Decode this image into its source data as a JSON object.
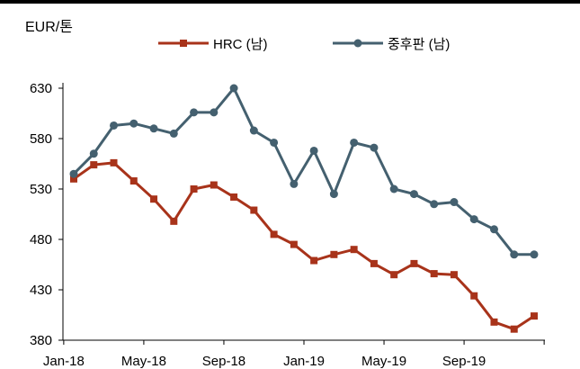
{
  "unit_label": "EUR/톤",
  "colors": {
    "hrc": "#a8331a",
    "plate": "#44606f",
    "axis": "#000000"
  },
  "chart_data": {
    "type": "line",
    "title": "",
    "xlabel": "",
    "ylabel": "EUR/톤",
    "ylim": [
      380,
      630
    ],
    "yticks": [
      380,
      430,
      480,
      530,
      580,
      630
    ],
    "x": [
      "2018-01",
      "2018-02",
      "2018-03",
      "2018-04",
      "2018-05",
      "2018-06",
      "2018-07",
      "2018-08",
      "2018-09",
      "2018-10",
      "2018-11",
      "2018-12",
      "2019-01",
      "2019-02",
      "2019-03",
      "2019-04",
      "2019-05",
      "2019-06",
      "2019-07",
      "2019-08",
      "2019-09",
      "2019-10",
      "2019-11",
      "2019-12"
    ],
    "xtick_labels": [
      {
        "index": 0,
        "label": "Jan-18"
      },
      {
        "index": 4,
        "label": "May-18"
      },
      {
        "index": 8,
        "label": "Sep-18"
      },
      {
        "index": 12,
        "label": "Jan-19"
      },
      {
        "index": 16,
        "label": "May-19"
      },
      {
        "index": 20,
        "label": "Sep-19"
      }
    ],
    "legend_position": "top",
    "grid": false,
    "series": [
      {
        "key": "hrc",
        "name": "HRC (남)",
        "marker": "square",
        "values": [
          540,
          554,
          556,
          538,
          520,
          498,
          530,
          534,
          522,
          509,
          485,
          475,
          459,
          465,
          470,
          456,
          445,
          456,
          446,
          445,
          424,
          398,
          391,
          404
        ]
      },
      {
        "key": "plate",
        "name": "중후판 (남)",
        "marker": "circle",
        "values": [
          545,
          565,
          593,
          595,
          590,
          585,
          606,
          606,
          630,
          588,
          576,
          535,
          568,
          525,
          576,
          571,
          530,
          525,
          515,
          517,
          500,
          490,
          465,
          465
        ]
      }
    ]
  }
}
